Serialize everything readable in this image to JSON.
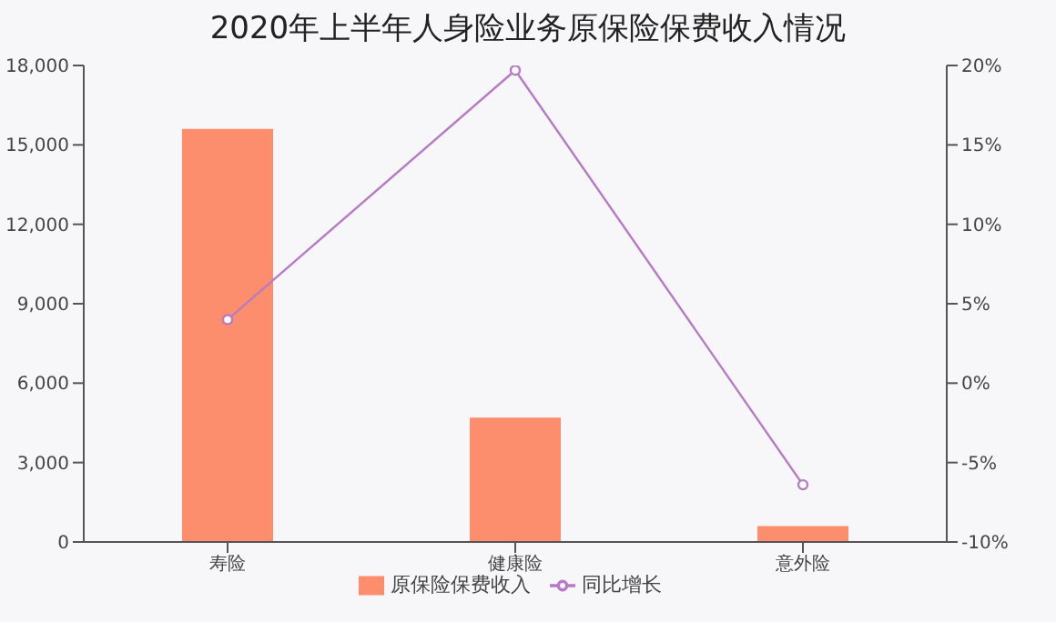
{
  "chart_data": {
    "type": "bar",
    "title": "2020年上半年人身险业务原保险保费收入情况",
    "categories": [
      "寿险",
      "健康险",
      "意外险"
    ],
    "series": [
      {
        "name": "原保险保费收入",
        "color": "#fc8e6e",
        "values": [
          15600,
          4700,
          600
        ]
      },
      {
        "name": "同比增长",
        "type": "line",
        "axis": "y2",
        "color": "#b57bc4",
        "values": [
          4,
          19.7,
          -6.4
        ]
      }
    ],
    "ylim": [
      0,
      18000
    ],
    "yticks": [
      0,
      {
        "value": 3000,
        "label": "3,000"
      },
      {
        "value": 6000,
        "label": "6,000"
      },
      {
        "value": 9000,
        "label": "9,000"
      },
      {
        "value": 12000,
        "label": "12,000"
      },
      {
        "value": 15000,
        "label": "15,000"
      },
      {
        "value": 18000,
        "label": "18,000"
      }
    ],
    "y2lim": [
      -10,
      20
    ],
    "y2ticks": [
      {
        "value": -10,
        "label": "-10%"
      },
      {
        "value": -5,
        "label": "-5%"
      },
      {
        "value": 0,
        "label": "0%"
      },
      {
        "value": 5,
        "label": "5%"
      },
      {
        "value": 10,
        "label": "10%"
      },
      {
        "value": 15,
        "label": "15%"
      },
      {
        "value": 20,
        "label": "20%"
      }
    ],
    "legend": "bottom",
    "grid": false,
    "marker": "circle"
  }
}
